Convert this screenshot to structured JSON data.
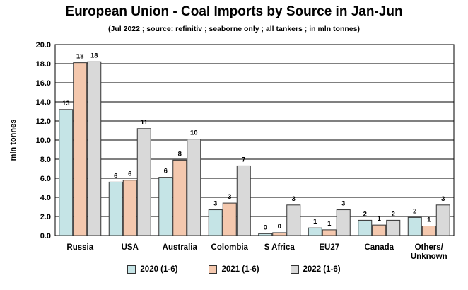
{
  "colors": {
    "s2020": "#c5e4e6",
    "s2021": "#f4c8ae",
    "s2022": "#d9d9d9"
  },
  "chart_data": {
    "type": "bar",
    "title": "European Union - Coal Imports by Source in Jan-Jun",
    "subtitle": "(Jul 2022 ; source: refinitiv ; seaborne only ; all tankers ; in mln tonnes)",
    "ylabel": "mln tonnes",
    "xlabel": "",
    "ylim": [
      0,
      20
    ],
    "yticks": [
      "0.0",
      "2.0",
      "4.0",
      "6.0",
      "8.0",
      "10.0",
      "12.0",
      "14.0",
      "16.0",
      "18.0",
      "20.0"
    ],
    "grid": true,
    "legend": "bottom",
    "categories": [
      "Russia",
      "USA",
      "Australia",
      "Colombia",
      "S Africa",
      "EU27",
      "Canada",
      "Others/\nUnknown"
    ],
    "series": [
      {
        "name": "2020 (1-6)",
        "values": [
          13.2,
          5.6,
          6.1,
          2.7,
          0.2,
          0.8,
          1.6,
          1.9
        ],
        "labels": [
          "13",
          "6",
          "6",
          "3",
          "0",
          "1",
          "2",
          "2"
        ]
      },
      {
        "name": "2021 (1-6)",
        "values": [
          18.1,
          5.8,
          7.9,
          3.4,
          0.3,
          0.6,
          1.1,
          1.0
        ],
        "labels": [
          "18",
          "6",
          "8",
          "3",
          "0",
          "1",
          "1",
          "1"
        ]
      },
      {
        "name": "2022 (1-6)",
        "values": [
          18.2,
          11.2,
          10.1,
          7.3,
          3.2,
          2.7,
          1.6,
          3.2
        ],
        "labels": [
          "18",
          "11",
          "10",
          "7",
          "3",
          "3",
          "2",
          "3"
        ]
      }
    ]
  }
}
